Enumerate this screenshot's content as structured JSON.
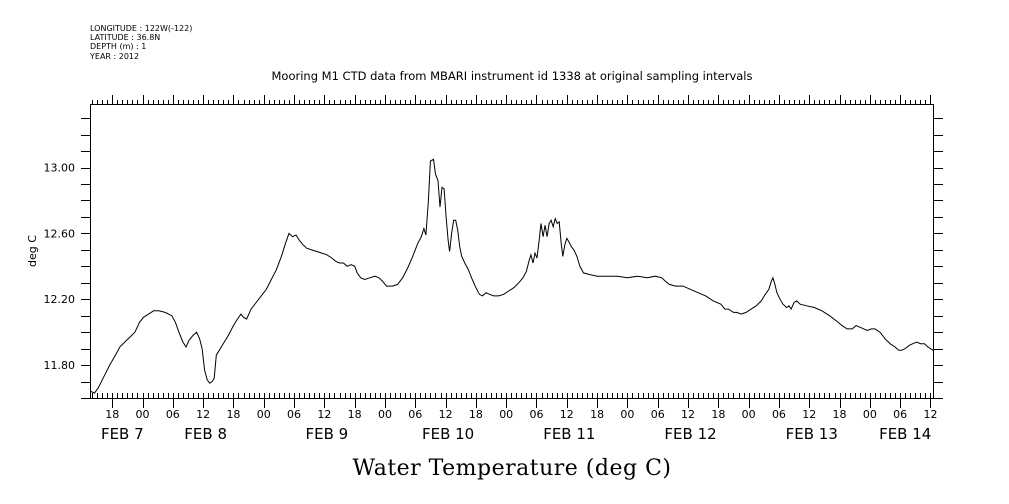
{
  "header": {
    "longitude": "LONGITUDE : 122W(-122)",
    "latitude": "LATITUDE : 36.8N",
    "depth": "DEPTH (m) : 1",
    "year": "YEAR : 2012"
  },
  "chart_data": {
    "type": "line",
    "title": "Mooring M1 CTD data from MBARI instrument id 1338 at original sampling intervals",
    "xlabel": "Water Temperature (deg C)",
    "ylabel": "deg C",
    "x_unit": "hours since 2012-02-07 00:00",
    "xlim": [
      13.8,
      180.5
    ],
    "ylim": [
      11.6,
      13.38
    ],
    "y_ticks": [
      11.8,
      12.2,
      12.6,
      13.0
    ],
    "y_tick_labels": [
      "11.80",
      "12.20",
      "12.60",
      "13.00"
    ],
    "x_hour_ticks": [
      {
        "x": 18,
        "label": "18"
      },
      {
        "x": 24,
        "label": "00"
      },
      {
        "x": 30,
        "label": "06"
      },
      {
        "x": 36,
        "label": "12"
      },
      {
        "x": 42,
        "label": "18"
      },
      {
        "x": 48,
        "label": "00"
      },
      {
        "x": 54,
        "label": "06"
      },
      {
        "x": 60,
        "label": "12"
      },
      {
        "x": 66,
        "label": "18"
      },
      {
        "x": 72,
        "label": "00"
      },
      {
        "x": 78,
        "label": "06"
      },
      {
        "x": 84,
        "label": "12"
      },
      {
        "x": 90,
        "label": "18"
      },
      {
        "x": 96,
        "label": "00"
      },
      {
        "x": 102,
        "label": "06"
      },
      {
        "x": 108,
        "label": "12"
      },
      {
        "x": 114,
        "label": "18"
      },
      {
        "x": 120,
        "label": "00"
      },
      {
        "x": 126,
        "label": "06"
      },
      {
        "x": 132,
        "label": "12"
      },
      {
        "x": 138,
        "label": "18"
      },
      {
        "x": 144,
        "label": "00"
      },
      {
        "x": 150,
        "label": "06"
      },
      {
        "x": 156,
        "label": "12"
      },
      {
        "x": 162,
        "label": "18"
      },
      {
        "x": 168,
        "label": "00"
      },
      {
        "x": 174,
        "label": "06"
      },
      {
        "x": 180,
        "label": "12"
      }
    ],
    "x_day_labels": [
      {
        "x": 20,
        "label": "FEB  7"
      },
      {
        "x": 36.5,
        "label": "FEB  8"
      },
      {
        "x": 60.5,
        "label": "FEB  9"
      },
      {
        "x": 84.5,
        "label": "FEB 10"
      },
      {
        "x": 108.5,
        "label": "FEB 11"
      },
      {
        "x": 132.5,
        "label": "FEB 12"
      },
      {
        "x": 156.5,
        "label": "FEB 13"
      },
      {
        "x": 175,
        "label": "FEB 14"
      }
    ],
    "series": [
      {
        "points": [
          [
            13.8,
            11.64
          ],
          [
            14.5,
            11.63
          ],
          [
            15.2,
            11.66
          ],
          [
            16.2,
            11.72
          ],
          [
            17.5,
            11.8
          ],
          [
            18.8,
            11.87
          ],
          [
            19.5,
            11.91
          ],
          [
            20.5,
            11.94
          ],
          [
            21.5,
            11.97
          ],
          [
            22.5,
            12.0
          ],
          [
            23.4,
            12.06
          ],
          [
            24.2,
            12.09
          ],
          [
            25.2,
            12.11
          ],
          [
            26.2,
            12.13
          ],
          [
            27.2,
            12.13
          ],
          [
            28.5,
            12.12
          ],
          [
            29.8,
            12.1
          ],
          [
            30.5,
            12.06
          ],
          [
            31.2,
            12.0
          ],
          [
            32.0,
            11.94
          ],
          [
            32.6,
            11.91
          ],
          [
            33.2,
            11.95
          ],
          [
            34.0,
            11.98
          ],
          [
            34.7,
            12.0
          ],
          [
            35.3,
            11.96
          ],
          [
            35.8,
            11.9
          ],
          [
            36.3,
            11.77
          ],
          [
            36.8,
            11.71
          ],
          [
            37.3,
            11.69
          ],
          [
            37.8,
            11.7
          ],
          [
            38.2,
            11.72
          ],
          [
            38.6,
            11.86
          ],
          [
            39.8,
            11.92
          ],
          [
            41.0,
            11.98
          ],
          [
            42.0,
            12.04
          ],
          [
            42.8,
            12.08
          ],
          [
            43.5,
            12.11
          ],
          [
            44.0,
            12.09
          ],
          [
            44.6,
            12.08
          ],
          [
            45.5,
            12.14
          ],
          [
            46.5,
            12.18
          ],
          [
            47.5,
            12.22
          ],
          [
            48.5,
            12.26
          ],
          [
            49.5,
            12.32
          ],
          [
            50.5,
            12.38
          ],
          [
            51.5,
            12.46
          ],
          [
            52.3,
            12.54
          ],
          [
            53.0,
            12.6
          ],
          [
            53.7,
            12.58
          ],
          [
            54.4,
            12.59
          ],
          [
            55.0,
            12.56
          ],
          [
            55.8,
            12.53
          ],
          [
            56.5,
            12.51
          ],
          [
            57.5,
            12.5
          ],
          [
            58.5,
            12.49
          ],
          [
            59.5,
            12.48
          ],
          [
            60.5,
            12.47
          ],
          [
            61.5,
            12.45
          ],
          [
            62.3,
            12.43
          ],
          [
            63.0,
            12.42
          ],
          [
            63.8,
            12.42
          ],
          [
            64.5,
            12.4
          ],
          [
            65.3,
            12.41
          ],
          [
            66.0,
            12.4
          ],
          [
            66.5,
            12.36
          ],
          [
            67.2,
            12.33
          ],
          [
            68.0,
            12.32
          ],
          [
            69.0,
            12.33
          ],
          [
            70.0,
            12.34
          ],
          [
            70.8,
            12.33
          ],
          [
            71.5,
            12.31
          ],
          [
            72.3,
            12.28
          ],
          [
            73.5,
            12.28
          ],
          [
            74.5,
            12.29
          ],
          [
            75.5,
            12.33
          ],
          [
            76.5,
            12.39
          ],
          [
            77.5,
            12.46
          ],
          [
            78.5,
            12.54
          ],
          [
            79.2,
            12.58
          ],
          [
            79.7,
            12.63
          ],
          [
            80.1,
            12.59
          ],
          [
            80.6,
            12.8
          ],
          [
            81.0,
            13.04
          ],
          [
            81.6,
            13.05
          ],
          [
            82.0,
            12.96
          ],
          [
            82.5,
            12.92
          ],
          [
            82.9,
            12.76
          ],
          [
            83.3,
            12.88
          ],
          [
            83.7,
            12.87
          ],
          [
            84.1,
            12.7
          ],
          [
            84.5,
            12.56
          ],
          [
            84.8,
            12.49
          ],
          [
            85.2,
            12.6
          ],
          [
            85.6,
            12.68
          ],
          [
            86.0,
            12.68
          ],
          [
            86.4,
            12.62
          ],
          [
            86.8,
            12.52
          ],
          [
            87.2,
            12.46
          ],
          [
            87.8,
            12.42
          ],
          [
            88.5,
            12.38
          ],
          [
            89.3,
            12.32
          ],
          [
            90.0,
            12.27
          ],
          [
            90.7,
            12.23
          ],
          [
            91.3,
            12.22
          ],
          [
            92.0,
            12.24
          ],
          [
            92.7,
            12.23
          ],
          [
            93.5,
            12.22
          ],
          [
            94.5,
            12.22
          ],
          [
            95.5,
            12.23
          ],
          [
            96.5,
            12.25
          ],
          [
            97.5,
            12.27
          ],
          [
            98.5,
            12.3
          ],
          [
            99.3,
            12.33
          ],
          [
            100.0,
            12.37
          ],
          [
            100.5,
            12.43
          ],
          [
            100.9,
            12.47
          ],
          [
            101.3,
            12.42
          ],
          [
            101.7,
            12.48
          ],
          [
            102.1,
            12.45
          ],
          [
            102.5,
            12.55
          ],
          [
            102.9,
            12.66
          ],
          [
            103.3,
            12.58
          ],
          [
            103.7,
            12.65
          ],
          [
            104.1,
            12.58
          ],
          [
            104.5,
            12.66
          ],
          [
            104.9,
            12.68
          ],
          [
            105.3,
            12.64
          ],
          [
            105.7,
            12.69
          ],
          [
            106.1,
            12.66
          ],
          [
            106.5,
            12.67
          ],
          [
            106.9,
            12.54
          ],
          [
            107.2,
            12.46
          ],
          [
            107.6,
            12.53
          ],
          [
            108.0,
            12.57
          ],
          [
            108.4,
            12.55
          ],
          [
            108.9,
            12.52
          ],
          [
            109.4,
            12.5
          ],
          [
            110.0,
            12.46
          ],
          [
            110.6,
            12.4
          ],
          [
            111.3,
            12.36
          ],
          [
            112.5,
            12.35
          ],
          [
            114.0,
            12.34
          ],
          [
            116.0,
            12.34
          ],
          [
            118.0,
            12.34
          ],
          [
            120.0,
            12.33
          ],
          [
            122.0,
            12.34
          ],
          [
            124.0,
            12.33
          ],
          [
            125.5,
            12.34
          ],
          [
            126.8,
            12.33
          ],
          [
            127.5,
            12.31
          ],
          [
            128.3,
            12.29
          ],
          [
            129.5,
            12.28
          ],
          [
            131.0,
            12.28
          ],
          [
            132.5,
            12.26
          ],
          [
            134.0,
            12.24
          ],
          [
            135.5,
            12.22
          ],
          [
            137.0,
            12.19
          ],
          [
            138.5,
            12.17
          ],
          [
            139.3,
            12.14
          ],
          [
            140.0,
            12.14
          ],
          [
            141.0,
            12.12
          ],
          [
            141.7,
            12.12
          ],
          [
            142.5,
            12.11
          ],
          [
            143.5,
            12.12
          ],
          [
            144.5,
            12.14
          ],
          [
            145.5,
            12.16
          ],
          [
            146.5,
            12.19
          ],
          [
            147.3,
            12.23
          ],
          [
            148.0,
            12.26
          ],
          [
            148.5,
            12.31
          ],
          [
            148.8,
            12.33
          ],
          [
            149.2,
            12.29
          ],
          [
            149.6,
            12.24
          ],
          [
            150.2,
            12.2
          ],
          [
            150.8,
            12.17
          ],
          [
            151.5,
            12.15
          ],
          [
            152.0,
            12.16
          ],
          [
            152.4,
            12.14
          ],
          [
            153.0,
            12.18
          ],
          [
            153.5,
            12.19
          ],
          [
            154.2,
            12.17
          ],
          [
            155.5,
            12.16
          ],
          [
            157.0,
            12.15
          ],
          [
            158.5,
            12.13
          ],
          [
            160.0,
            12.1
          ],
          [
            161.3,
            12.07
          ],
          [
            162.5,
            12.04
          ],
          [
            163.5,
            12.02
          ],
          [
            164.5,
            12.02
          ],
          [
            165.3,
            12.04
          ],
          [
            166.0,
            12.03
          ],
          [
            166.8,
            12.02
          ],
          [
            167.5,
            12.01
          ],
          [
            168.3,
            12.02
          ],
          [
            169.0,
            12.02
          ],
          [
            170.0,
            12.0
          ],
          [
            171.0,
            11.96
          ],
          [
            172.0,
            11.93
          ],
          [
            173.0,
            11.91
          ],
          [
            173.7,
            11.89
          ],
          [
            174.3,
            11.89
          ],
          [
            175.0,
            11.9
          ],
          [
            175.8,
            11.92
          ],
          [
            176.5,
            11.93
          ],
          [
            177.3,
            11.94
          ],
          [
            178.0,
            11.93
          ],
          [
            178.8,
            11.93
          ],
          [
            179.5,
            11.91
          ],
          [
            180.0,
            11.9
          ],
          [
            180.5,
            11.89
          ],
          [
            181.0,
            11.89
          ],
          [
            181.6,
            11.88
          ],
          [
            182.3,
            11.89
          ],
          [
            183.0,
            11.88
          ],
          [
            183.8,
            11.89
          ],
          [
            184.5,
            11.89
          ]
        ]
      }
    ]
  }
}
